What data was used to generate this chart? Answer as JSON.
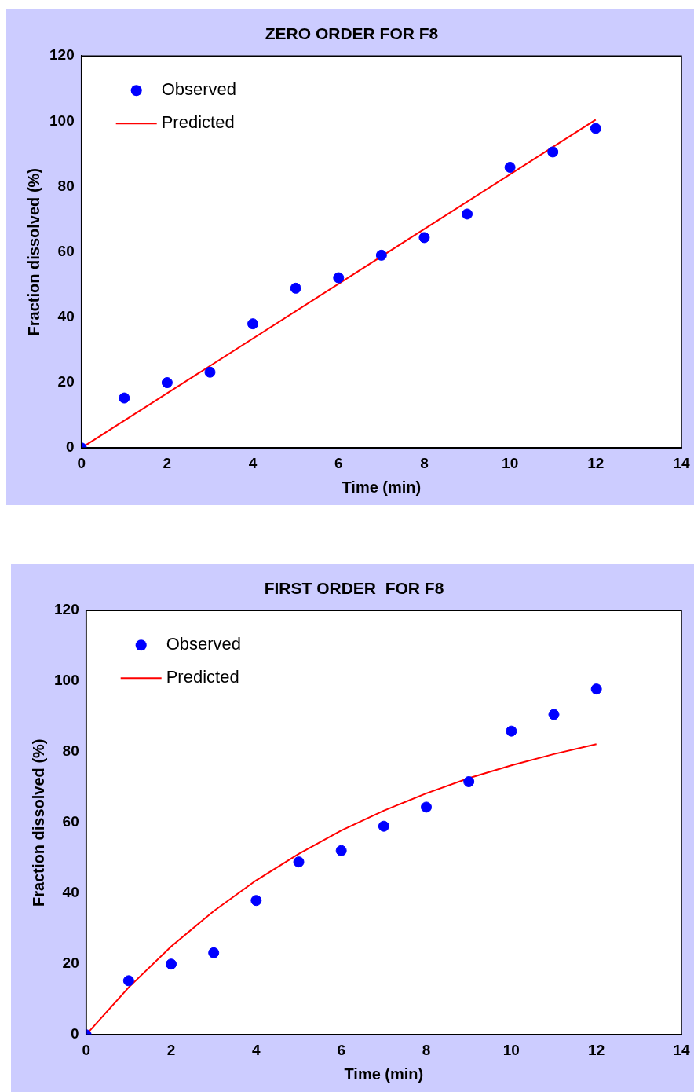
{
  "chart_data": [
    {
      "type": "scatter",
      "title": "ZERO ORDER FOR F8",
      "xlabel": "Time (min)",
      "ylabel": "Fraction dissolved (%)",
      "xlim": [
        0,
        14
      ],
      "xticks": [
        0,
        2,
        4,
        6,
        8,
        10,
        12,
        14
      ],
      "ylim": [
        0,
        120
      ],
      "yticks": [
        0,
        20,
        40,
        60,
        80,
        100,
        120
      ],
      "grid": false,
      "legend": "top left",
      "series": [
        {
          "name": "Observed",
          "marker": "circle",
          "color": "#0000ff",
          "x": [
            0,
            1,
            2,
            3,
            4,
            5,
            6,
            7,
            8,
            9,
            10,
            11,
            12
          ],
          "values": [
            0,
            15.3,
            20,
            23.2,
            38,
            48.9,
            52.1,
            59,
            64.4,
            71.6,
            85.9,
            90.6,
            97.8
          ]
        },
        {
          "name": "Predicted",
          "type": "line",
          "marker": "none",
          "line_style": "solid",
          "color": "#ff0000",
          "x": [
            0,
            12
          ],
          "values": [
            0,
            100.5
          ]
        }
      ]
    },
    {
      "type": "scatter",
      "title": "FIRST ORDER  FOR F8",
      "xlabel": "Time (min)",
      "ylabel": "Fraction dissolved (%)",
      "xlim": [
        0,
        14
      ],
      "xticks": [
        0,
        2,
        4,
        6,
        8,
        10,
        12,
        14
      ],
      "ylim": [
        0,
        120
      ],
      "yticks": [
        0,
        20,
        40,
        60,
        80,
        100,
        120
      ],
      "grid": false,
      "legend": "top left",
      "series": [
        {
          "name": "Observed",
          "marker": "circle",
          "color": "#0000ff",
          "x": [
            0,
            1,
            2,
            3,
            4,
            5,
            6,
            7,
            8,
            9,
            10,
            11,
            12
          ],
          "values": [
            0,
            15.3,
            20,
            23.2,
            38,
            48.9,
            52.1,
            59,
            64.4,
            71.6,
            85.9,
            90.6,
            97.8
          ]
        },
        {
          "name": "Predicted",
          "type": "line",
          "marker": "none",
          "line_style": "solid",
          "color": "#ff0000",
          "x": [
            0,
            1,
            2,
            3,
            4,
            5,
            6,
            7,
            8,
            9,
            10,
            11,
            12
          ],
          "values": [
            0,
            13.4,
            25,
            35,
            43.7,
            51.2,
            57.8,
            63.4,
            68.3,
            72.6,
            76.2,
            79.4,
            82.2
          ]
        }
      ]
    }
  ]
}
